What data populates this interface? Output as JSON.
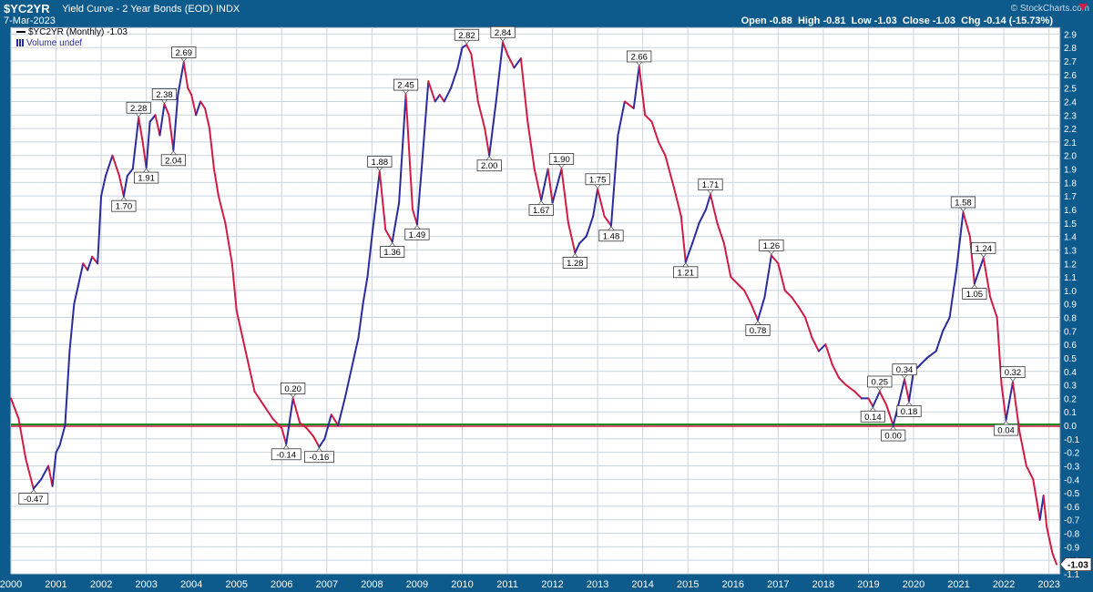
{
  "header": {
    "symbol": "$YC2YR",
    "subtitle": "Yield Curve - 2 Year Bonds (EOD)  INDX",
    "date": "7-Mar-2023",
    "watermark": "© StockCharts.com",
    "open": "Open -0.88",
    "high": "High -0.81",
    "low": "Low -1.03",
    "close": "Close -1.03",
    "change": "Chg -0.14 (-15.73%)",
    "change_color": "#d01c44"
  },
  "legend": {
    "series": "$YC2YR (Monthly) -1.03",
    "volume": "Volume undef"
  },
  "colors": {
    "background": "#0d5a8c",
    "plot_bg": "#ffffff",
    "grid": "#c9d3dc",
    "up_line": "#2b2ba0",
    "down_line": "#d01c44",
    "zero_line": "#1f8a1f",
    "ref_line": "#d01c44"
  },
  "chart_data": {
    "type": "line",
    "title": "Yield Curve - 2 Year Bonds (EOD)",
    "xlabel": "",
    "ylabel": "",
    "xlim": [
      2000.0,
      2023.25
    ],
    "ylim": [
      -1.1,
      2.95
    ],
    "grid": true,
    "x_ticks": [
      "2000",
      "2001",
      "2002",
      "2003",
      "2004",
      "2005",
      "2006",
      "2007",
      "2008",
      "2009",
      "2010",
      "2011",
      "2012",
      "2013",
      "2014",
      "2015",
      "2016",
      "2017",
      "2018",
      "2019",
      "2020",
      "2021",
      "2022",
      "2023"
    ],
    "y_ticks": [
      "2.9",
      "2.8",
      "2.7",
      "2.6",
      "2.5",
      "2.4",
      "2.3",
      "2.2",
      "2.1",
      "2.0",
      "1.9",
      "1.8",
      "1.7",
      "1.6",
      "1.5",
      "1.4",
      "1.3",
      "1.2",
      "1.1",
      "1.0",
      "0.9",
      "0.8",
      "0.7",
      "0.6",
      "0.5",
      "0.4",
      "0.3",
      "0.2",
      "0.1",
      "0.0",
      "-0.1",
      "-0.2",
      "-0.3",
      "-0.4",
      "-0.5",
      "-0.6",
      "-0.7",
      "-0.8",
      "-0.9",
      "-1.0",
      "-1.1"
    ],
    "last_value_label": "-1.03",
    "reference_lines": [
      {
        "value": 0.0,
        "color": "#1f8a1f"
      },
      {
        "value": 0.0,
        "color": "#d01c44"
      }
    ],
    "series": [
      {
        "name": "$YC2YR (Monthly)",
        "points": [
          [
            2000.0,
            0.2
          ],
          [
            2000.17,
            0.05
          ],
          [
            2000.33,
            -0.25
          ],
          [
            2000.5,
            -0.47
          ],
          [
            2000.67,
            -0.4
          ],
          [
            2000.83,
            -0.3
          ],
          [
            2000.92,
            -0.45
          ],
          [
            2001.0,
            -0.2
          ],
          [
            2001.08,
            -0.15
          ],
          [
            2001.2,
            0.0
          ],
          [
            2001.3,
            0.55
          ],
          [
            2001.4,
            0.9
          ],
          [
            2001.5,
            1.05
          ],
          [
            2001.6,
            1.2
          ],
          [
            2001.7,
            1.15
          ],
          [
            2001.8,
            1.25
          ],
          [
            2001.92,
            1.2
          ],
          [
            2002.0,
            1.7
          ],
          [
            2002.1,
            1.85
          ],
          [
            2002.25,
            2.0
          ],
          [
            2002.4,
            1.85
          ],
          [
            2002.5,
            1.7
          ],
          [
            2002.58,
            1.85
          ],
          [
            2002.7,
            1.9
          ],
          [
            2002.83,
            2.28
          ],
          [
            2002.92,
            2.1
          ],
          [
            2003.0,
            1.91
          ],
          [
            2003.08,
            2.25
          ],
          [
            2003.2,
            2.3
          ],
          [
            2003.3,
            2.15
          ],
          [
            2003.4,
            2.38
          ],
          [
            2003.5,
            2.3
          ],
          [
            2003.6,
            2.04
          ],
          [
            2003.7,
            2.45
          ],
          [
            2003.83,
            2.69
          ],
          [
            2003.92,
            2.5
          ],
          [
            2004.0,
            2.45
          ],
          [
            2004.1,
            2.3
          ],
          [
            2004.2,
            2.4
          ],
          [
            2004.3,
            2.35
          ],
          [
            2004.4,
            2.2
          ],
          [
            2004.5,
            1.9
          ],
          [
            2004.6,
            1.7
          ],
          [
            2004.75,
            1.5
          ],
          [
            2004.9,
            1.2
          ],
          [
            2005.0,
            0.85
          ],
          [
            2005.2,
            0.55
          ],
          [
            2005.4,
            0.25
          ],
          [
            2005.6,
            0.15
          ],
          [
            2005.8,
            0.05
          ],
          [
            2006.0,
            -0.02
          ],
          [
            2006.1,
            -0.14
          ],
          [
            2006.25,
            0.2
          ],
          [
            2006.4,
            0.02
          ],
          [
            2006.55,
            -0.02
          ],
          [
            2006.7,
            -0.08
          ],
          [
            2006.83,
            -0.16
          ],
          [
            2006.95,
            -0.1
          ],
          [
            2007.1,
            0.08
          ],
          [
            2007.25,
            0.0
          ],
          [
            2007.4,
            0.2
          ],
          [
            2007.5,
            0.35
          ],
          [
            2007.6,
            0.5
          ],
          [
            2007.7,
            0.65
          ],
          [
            2007.8,
            0.9
          ],
          [
            2007.9,
            1.1
          ],
          [
            2008.0,
            1.4
          ],
          [
            2008.17,
            1.88
          ],
          [
            2008.3,
            1.45
          ],
          [
            2008.45,
            1.36
          ],
          [
            2008.6,
            1.65
          ],
          [
            2008.75,
            2.45
          ],
          [
            2008.9,
            1.6
          ],
          [
            2009.0,
            1.49
          ],
          [
            2009.1,
            1.9
          ],
          [
            2009.25,
            2.55
          ],
          [
            2009.4,
            2.4
          ],
          [
            2009.5,
            2.45
          ],
          [
            2009.6,
            2.4
          ],
          [
            2009.75,
            2.5
          ],
          [
            2009.9,
            2.65
          ],
          [
            2010.0,
            2.8
          ],
          [
            2010.1,
            2.82
          ],
          [
            2010.2,
            2.75
          ],
          [
            2010.35,
            2.4
          ],
          [
            2010.5,
            2.2
          ],
          [
            2010.6,
            2.0
          ],
          [
            2010.75,
            2.4
          ],
          [
            2010.9,
            2.84
          ],
          [
            2011.0,
            2.75
          ],
          [
            2011.15,
            2.65
          ],
          [
            2011.3,
            2.72
          ],
          [
            2011.45,
            2.25
          ],
          [
            2011.6,
            1.9
          ],
          [
            2011.75,
            1.67
          ],
          [
            2011.9,
            1.9
          ],
          [
            2012.0,
            1.65
          ],
          [
            2012.2,
            1.9
          ],
          [
            2012.35,
            1.5
          ],
          [
            2012.5,
            1.28
          ],
          [
            2012.6,
            1.35
          ],
          [
            2012.75,
            1.4
          ],
          [
            2012.9,
            1.55
          ],
          [
            2013.0,
            1.75
          ],
          [
            2013.15,
            1.55
          ],
          [
            2013.3,
            1.48
          ],
          [
            2013.45,
            2.15
          ],
          [
            2013.6,
            2.4
          ],
          [
            2013.8,
            2.35
          ],
          [
            2013.92,
            2.66
          ],
          [
            2014.05,
            2.3
          ],
          [
            2014.2,
            2.25
          ],
          [
            2014.35,
            2.1
          ],
          [
            2014.5,
            2.0
          ],
          [
            2014.7,
            1.75
          ],
          [
            2014.85,
            1.55
          ],
          [
            2014.95,
            1.21
          ],
          [
            2015.1,
            1.35
          ],
          [
            2015.25,
            1.5
          ],
          [
            2015.4,
            1.6
          ],
          [
            2015.5,
            1.71
          ],
          [
            2015.65,
            1.5
          ],
          [
            2015.8,
            1.35
          ],
          [
            2015.95,
            1.1
          ],
          [
            2016.1,
            1.05
          ],
          [
            2016.25,
            1.0
          ],
          [
            2016.4,
            0.9
          ],
          [
            2016.55,
            0.78
          ],
          [
            2016.7,
            0.95
          ],
          [
            2016.85,
            1.26
          ],
          [
            2017.0,
            1.2
          ],
          [
            2017.15,
            1.0
          ],
          [
            2017.3,
            0.95
          ],
          [
            2017.45,
            0.88
          ],
          [
            2017.6,
            0.8
          ],
          [
            2017.75,
            0.65
          ],
          [
            2017.9,
            0.55
          ],
          [
            2018.05,
            0.6
          ],
          [
            2018.2,
            0.45
          ],
          [
            2018.35,
            0.35
          ],
          [
            2018.5,
            0.3
          ],
          [
            2018.7,
            0.25
          ],
          [
            2018.85,
            0.2
          ],
          [
            2019.0,
            0.2
          ],
          [
            2019.1,
            0.14
          ],
          [
            2019.25,
            0.25
          ],
          [
            2019.4,
            0.15
          ],
          [
            2019.55,
            0.0
          ],
          [
            2019.7,
            0.2
          ],
          [
            2019.8,
            0.34
          ],
          [
            2019.9,
            0.18
          ],
          [
            2020.0,
            0.4
          ],
          [
            2020.15,
            0.45
          ],
          [
            2020.3,
            0.5
          ],
          [
            2020.5,
            0.55
          ],
          [
            2020.65,
            0.7
          ],
          [
            2020.8,
            0.8
          ],
          [
            2020.95,
            1.15
          ],
          [
            2021.1,
            1.58
          ],
          [
            2021.25,
            1.4
          ],
          [
            2021.35,
            1.05
          ],
          [
            2021.55,
            1.24
          ],
          [
            2021.7,
            0.95
          ],
          [
            2021.85,
            0.8
          ],
          [
            2021.95,
            0.3
          ],
          [
            2022.05,
            0.04
          ],
          [
            2022.2,
            0.32
          ],
          [
            2022.35,
            -0.05
          ],
          [
            2022.5,
            -0.3
          ],
          [
            2022.65,
            -0.4
          ],
          [
            2022.8,
            -0.7
          ],
          [
            2022.88,
            -0.52
          ],
          [
            2022.95,
            -0.75
          ],
          [
            2023.08,
            -0.95
          ],
          [
            2023.17,
            -1.03
          ]
        ]
      }
    ],
    "annotations": [
      {
        "x": 2000.5,
        "y": -0.47,
        "label": "-0.47",
        "pos": "below"
      },
      {
        "x": 2002.5,
        "y": 1.7,
        "label": "1.70",
        "pos": "below"
      },
      {
        "x": 2002.83,
        "y": 2.28,
        "label": "2.28",
        "pos": "above"
      },
      {
        "x": 2003.0,
        "y": 1.91,
        "label": "1.91",
        "pos": "below"
      },
      {
        "x": 2003.4,
        "y": 2.38,
        "label": "2.38",
        "pos": "above"
      },
      {
        "x": 2003.6,
        "y": 2.04,
        "label": "2.04",
        "pos": "below"
      },
      {
        "x": 2003.83,
        "y": 2.69,
        "label": "2.69",
        "pos": "above"
      },
      {
        "x": 2006.1,
        "y": -0.14,
        "label": "-0.14",
        "pos": "below"
      },
      {
        "x": 2006.25,
        "y": 0.2,
        "label": "0.20",
        "pos": "above"
      },
      {
        "x": 2006.83,
        "y": -0.16,
        "label": "-0.16",
        "pos": "below"
      },
      {
        "x": 2008.17,
        "y": 1.88,
        "label": "1.88",
        "pos": "above"
      },
      {
        "x": 2008.45,
        "y": 1.36,
        "label": "1.36",
        "pos": "below"
      },
      {
        "x": 2008.75,
        "y": 2.45,
        "label": "2.45",
        "pos": "above"
      },
      {
        "x": 2009.0,
        "y": 1.49,
        "label": "1.49",
        "pos": "below"
      },
      {
        "x": 2010.1,
        "y": 2.82,
        "label": "2.82",
        "pos": "above"
      },
      {
        "x": 2010.6,
        "y": 2.0,
        "label": "2.00",
        "pos": "below"
      },
      {
        "x": 2010.9,
        "y": 2.84,
        "label": "2.84",
        "pos": "above"
      },
      {
        "x": 2011.75,
        "y": 1.67,
        "label": "1.67",
        "pos": "below"
      },
      {
        "x": 2012.2,
        "y": 1.9,
        "label": "1.90",
        "pos": "above"
      },
      {
        "x": 2012.5,
        "y": 1.28,
        "label": "1.28",
        "pos": "below"
      },
      {
        "x": 2013.0,
        "y": 1.75,
        "label": "1.75",
        "pos": "above"
      },
      {
        "x": 2013.3,
        "y": 1.48,
        "label": "1.48",
        "pos": "below"
      },
      {
        "x": 2013.92,
        "y": 2.66,
        "label": "2.66",
        "pos": "above"
      },
      {
        "x": 2014.95,
        "y": 1.21,
        "label": "1.21",
        "pos": "below"
      },
      {
        "x": 2015.5,
        "y": 1.71,
        "label": "1.71",
        "pos": "above"
      },
      {
        "x": 2016.55,
        "y": 0.78,
        "label": "0.78",
        "pos": "below"
      },
      {
        "x": 2016.85,
        "y": 1.26,
        "label": "1.26",
        "pos": "above"
      },
      {
        "x": 2019.1,
        "y": 0.14,
        "label": "0.14",
        "pos": "below"
      },
      {
        "x": 2019.25,
        "y": 0.25,
        "label": "0.25",
        "pos": "above"
      },
      {
        "x": 2019.55,
        "y": 0.0,
        "label": "0.00",
        "pos": "below"
      },
      {
        "x": 2019.8,
        "y": 0.34,
        "label": "0.34",
        "pos": "above"
      },
      {
        "x": 2019.9,
        "y": 0.18,
        "label": "0.18",
        "pos": "below"
      },
      {
        "x": 2021.1,
        "y": 1.58,
        "label": "1.58",
        "pos": "above"
      },
      {
        "x": 2021.35,
        "y": 1.05,
        "label": "1.05",
        "pos": "below"
      },
      {
        "x": 2021.55,
        "y": 1.24,
        "label": "1.24",
        "pos": "above"
      },
      {
        "x": 2022.05,
        "y": 0.04,
        "label": "0.04",
        "pos": "below"
      },
      {
        "x": 2022.2,
        "y": 0.32,
        "label": "0.32",
        "pos": "above"
      }
    ]
  }
}
